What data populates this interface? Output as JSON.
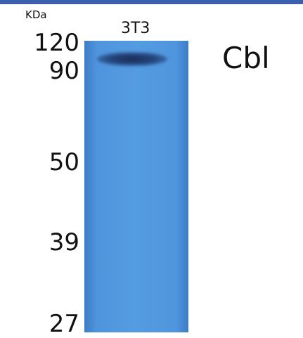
{
  "unit": "KDa",
  "lane": "3T3",
  "markers": [
    120,
    90,
    50,
    39,
    27
  ],
  "band_label": "Cbl"
}
